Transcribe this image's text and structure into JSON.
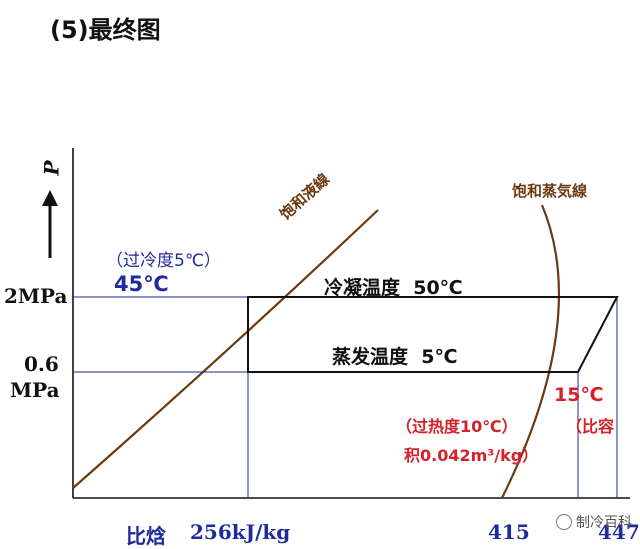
{
  "heading": "(5)最终图",
  "axis": {
    "y_symbol": "P",
    "p_high": "2MPa",
    "p_low_value": "0.6",
    "p_low_unit": "MPa",
    "x_label": "比焓",
    "h1": "256kJ/kg",
    "h2": "415",
    "h3": "447"
  },
  "curves": {
    "liquid": "饱和液線",
    "vapor": "饱和蒸気線"
  },
  "annotations": {
    "subcool": "（过冷度5℃）",
    "subcool_temp": "45℃",
    "condensing": "冷凝温度  50℃",
    "evaporating": "蒸发温度  5℃",
    "superheat_temp": "15℃",
    "superheat": "（过热度10℃）",
    "specific_volume_a": "（比容",
    "specific_volume_b": "积0.042m³/kg）"
  },
  "watermark": "制冷百科",
  "colors": {
    "blue": "#1f2a9c",
    "red": "#d4212a",
    "brown": "#6b3a10"
  }
}
